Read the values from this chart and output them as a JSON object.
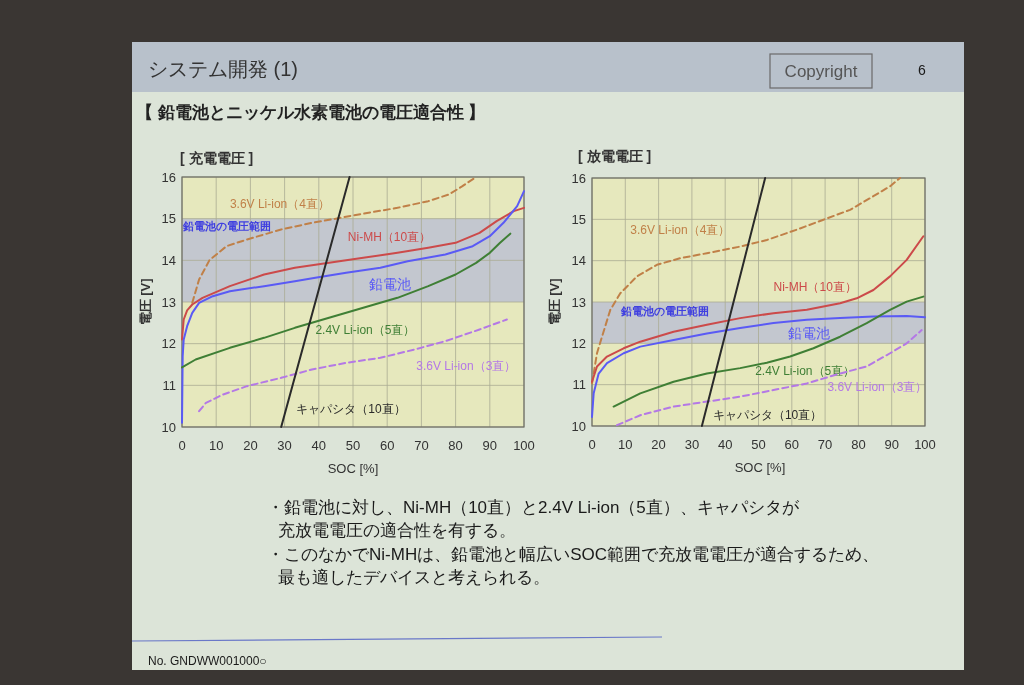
{
  "chart_data": [
    {
      "type": "other",
      "title": "システム開発 (1)",
      "subtitle": "【 鉛電池とニッケル水素電池の電圧適合性 】",
      "annotations": [
        "Copyright",
        "6",
        "・鉛電池に対し、Ni-MH（10直）と2.4V Li-ion（5直）、キャパシタが",
        "充放電電圧の適合性を有する。",
        "・このなかでNi-MHは、鉛電池と幅広いSOC範囲で充放電電圧が適合するため、",
        "最も適したデバイスと考えられる。",
        "No. GNDWW001000○"
      ]
    },
    {
      "type": "line",
      "title": "[ 充電電圧 ]",
      "xlabel": "SOC [%]",
      "ylabel": "電圧 [V]",
      "xlim": [
        0,
        100
      ],
      "ylim": [
        10,
        16
      ],
      "xticks": [
        0,
        10,
        20,
        30,
        40,
        50,
        60,
        70,
        80,
        90,
        100
      ],
      "yticks": [
        10,
        11,
        12,
        13,
        14,
        15,
        16
      ],
      "grid": true,
      "bands": [
        {
          "axis": "y",
          "from": 13,
          "to": 15,
          "label": "鉛電池の電圧範囲",
          "color": "#c3c7cf"
        }
      ],
      "series": [
        {
          "name": "3.6V Li-ion（4直）",
          "color": "#c08048",
          "line_style": "dashed",
          "x": [
            3,
            5,
            8,
            13,
            19,
            29,
            38,
            45,
            53,
            63,
            72,
            78,
            82,
            86
          ],
          "values": [
            12.98,
            13.54,
            14.0,
            14.34,
            14.5,
            14.74,
            14.9,
            15.0,
            15.12,
            15.26,
            15.42,
            15.58,
            15.78,
            16.0
          ]
        },
        {
          "name": "Ni-MH（10直）",
          "color": "#cc4a4a",
          "line_style": "solid",
          "x": [
            0,
            0.5,
            1.5,
            3,
            6,
            14,
            24,
            33,
            43,
            53,
            63,
            72,
            80,
            87,
            92,
            97,
            100
          ],
          "values": [
            12.1,
            12.58,
            12.8,
            12.94,
            13.1,
            13.38,
            13.66,
            13.82,
            13.94,
            14.06,
            14.18,
            14.3,
            14.42,
            14.66,
            14.94,
            15.18,
            15.26
          ]
        },
        {
          "name": "鉛電池",
          "color": "#5a5af5",
          "line_style": "solid",
          "x": [
            0,
            0.2,
            0.5,
            1.5,
            3,
            5,
            9,
            14,
            24,
            33,
            39,
            48,
            58,
            66,
            77,
            85,
            90,
            94,
            98,
            100
          ],
          "values": [
            10.1,
            11.7,
            12.1,
            12.42,
            12.74,
            12.98,
            13.14,
            13.26,
            13.38,
            13.5,
            13.58,
            13.7,
            13.82,
            13.98,
            14.14,
            14.34,
            14.58,
            14.9,
            15.3,
            15.66
          ]
        },
        {
          "name": "2.4V Li-ion（5直）",
          "color": "#3f7f35",
          "line_style": "solid",
          "x": [
            0,
            4,
            14,
            24,
            33,
            43,
            53,
            63,
            72,
            80,
            86,
            90,
            93,
            96
          ],
          "values": [
            11.43,
            11.62,
            11.9,
            12.14,
            12.38,
            12.62,
            12.86,
            13.1,
            13.38,
            13.66,
            13.94,
            14.18,
            14.42,
            14.64
          ]
        },
        {
          "name": "3.6V Li-ion（3直）",
          "color": "#b478e6",
          "line_style": "dashed",
          "x": [
            5,
            7,
            12,
            19,
            29,
            38,
            48,
            58,
            68,
            77,
            87,
            95
          ],
          "values": [
            10.38,
            10.58,
            10.78,
            10.98,
            11.18,
            11.38,
            11.54,
            11.66,
            11.86,
            12.06,
            12.34,
            12.58
          ]
        },
        {
          "name": "キャパシタ（10直）",
          "color": "#2a2a2a",
          "line_style": "solid",
          "x": [
            29,
            49
          ],
          "values": [
            10,
            16
          ]
        }
      ]
    },
    {
      "type": "line",
      "title": "[ 放電電圧 ]",
      "xlabel": "SOC [%]",
      "ylabel": "電圧 [V]",
      "xlim": [
        0,
        100
      ],
      "ylim": [
        10,
        16
      ],
      "xticks": [
        0,
        10,
        20,
        30,
        40,
        50,
        60,
        70,
        80,
        90,
        100
      ],
      "yticks": [
        10,
        11,
        12,
        13,
        14,
        15,
        16
      ],
      "grid": true,
      "bands": [
        {
          "axis": "y",
          "from": 12,
          "to": 13,
          "label": "鉛電池の電圧範囲",
          "color": "#c3c7cf"
        }
      ],
      "series": [
        {
          "name": "3.6V Li-ion（4直）",
          "color": "#c08048",
          "line_style": "dashed",
          "x": [
            0,
            1.5,
            3,
            5.5,
            8.5,
            13.5,
            19.5,
            26.5,
            34.5,
            44.5,
            52.5,
            61.5,
            69.5,
            77.5,
            84.5,
            89.5,
            92.5
          ],
          "values": [
            11.03,
            11.76,
            12.16,
            12.81,
            13.21,
            13.62,
            13.9,
            14.06,
            14.18,
            14.34,
            14.5,
            14.75,
            14.99,
            15.23,
            15.56,
            15.8,
            16.0
          ]
        },
        {
          "name": "Ni-MH（10直）",
          "color": "#cc4a4a",
          "line_style": "solid",
          "x": [
            0,
            1.5,
            4.5,
            9.5,
            14.5,
            24.5,
            34.5,
            44.5,
            54.5,
            64.5,
            74.5,
            79.5,
            84.5,
            89.5,
            94.5,
            99.5
          ],
          "values": [
            11.07,
            11.44,
            11.68,
            11.88,
            12.04,
            12.28,
            12.45,
            12.61,
            12.73,
            12.81,
            12.97,
            13.09,
            13.29,
            13.62,
            14.02,
            14.59
          ]
        },
        {
          "name": "鉛電池",
          "color": "#5a5af5",
          "line_style": "solid",
          "x": [
            0,
            0.5,
            2,
            4.5,
            9.5,
            14.5,
            24.5,
            34.5,
            44.5,
            54.5,
            64.5,
            74.5,
            84.5,
            94.5,
            100
          ],
          "values": [
            10.22,
            10.79,
            11.27,
            11.52,
            11.76,
            11.92,
            12.08,
            12.24,
            12.37,
            12.49,
            12.57,
            12.61,
            12.65,
            12.66,
            12.63
          ]
        },
        {
          "name": "2.4V Li-ion（5直）",
          "color": "#3f7f35",
          "line_style": "solid",
          "x": [
            6.5,
            14.5,
            24.5,
            34.5,
            44.5,
            52.5,
            59.5,
            66.5,
            74.5,
            82.5,
            89.5,
            94.5,
            99.5
          ],
          "values": [
            10.47,
            10.79,
            11.07,
            11.27,
            11.4,
            11.53,
            11.68,
            11.88,
            12.16,
            12.49,
            12.81,
            13.01,
            13.13
          ]
        },
        {
          "name": "3.6V Li-ion（3直）",
          "color": "#b478e6",
          "line_style": "dashed",
          "x": [
            7.5,
            14.5,
            24.5,
            34.5,
            44.5,
            54.5,
            64.5,
            74.5,
            82.5,
            89.5,
            94.5,
            99
          ],
          "values": [
            10.02,
            10.26,
            10.47,
            10.59,
            10.71,
            10.87,
            11.03,
            11.27,
            11.44,
            11.76,
            12.0,
            12.32
          ]
        },
        {
          "name": "キャパシタ（10直）",
          "color": "#2a2a2a",
          "line_style": "solid",
          "x": [
            33,
            52
          ],
          "values": [
            10,
            16
          ]
        }
      ]
    }
  ]
}
